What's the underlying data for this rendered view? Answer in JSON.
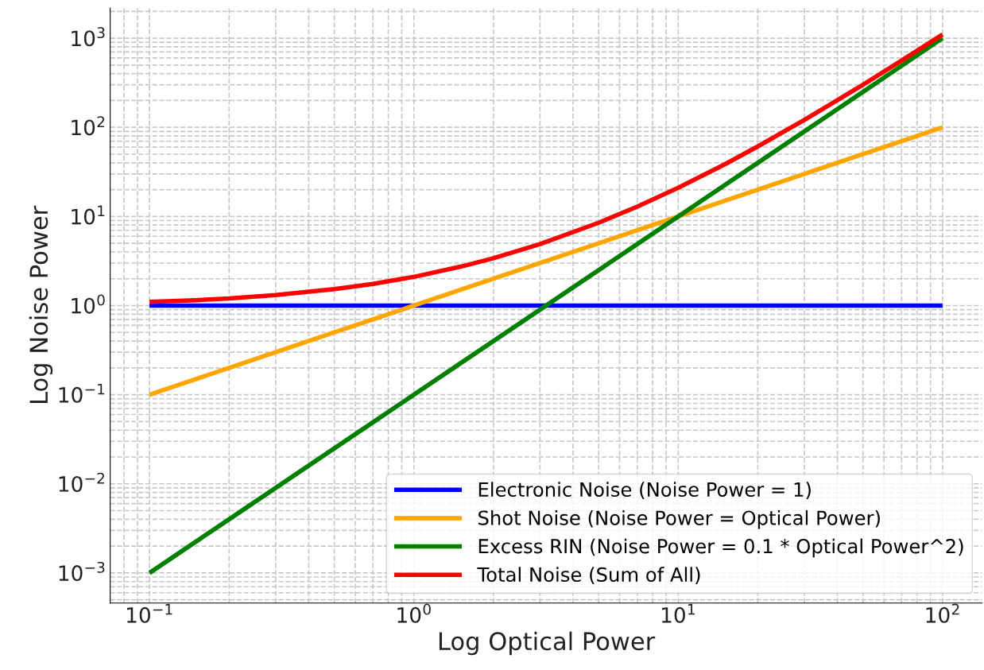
{
  "chart_data": {
    "type": "line",
    "xlabel": "Log Optical Power",
    "ylabel": "Log Noise Power",
    "log": "xy",
    "grid": true,
    "legend": "bottom right",
    "line_style": "solid",
    "marker": "none",
    "x": [
      0.1,
      0.15,
      0.2,
      0.3,
      0.5,
      0.7,
      1,
      1.5,
      2,
      3,
      5,
      7,
      10,
      15,
      20,
      30,
      50,
      70,
      100
    ],
    "xlim": [
      0.071,
      141
    ],
    "ylim": [
      0.00046,
      2180
    ],
    "xticks": [
      {
        "value": 0.1,
        "label": "10$^{−1}$"
      },
      {
        "value": 1,
        "label": "10$^{0}$"
      },
      {
        "value": 10,
        "label": "10$^{1}$"
      },
      {
        "value": 100,
        "label": "10$^{2}$"
      }
    ],
    "yticks": [
      {
        "value": 0.001,
        "label": "10$^{−3}$"
      },
      {
        "value": 0.01,
        "label": "10$^{−2}$"
      },
      {
        "value": 0.1,
        "label": "10$^{−1}$"
      },
      {
        "value": 1,
        "label": "10$^{0}$"
      },
      {
        "value": 10,
        "label": "10$^{1}$"
      },
      {
        "value": 100,
        "label": "10$^{2}$"
      },
      {
        "value": 1000,
        "label": "10$^{3}$"
      }
    ],
    "series": [
      {
        "name": "Electronic Noise (Noise Power = 1)",
        "color": "#0000ff",
        "values": [
          1,
          1,
          1,
          1,
          1,
          1,
          1,
          1,
          1,
          1,
          1,
          1,
          1,
          1,
          1,
          1,
          1,
          1,
          1
        ]
      },
      {
        "name": "Shot Noise (Noise Power = Optical Power)",
        "color": "#ffa500",
        "values": [
          0.1,
          0.15,
          0.2,
          0.3,
          0.5,
          0.7,
          1,
          1.5,
          2,
          3,
          5,
          7,
          10,
          15,
          20,
          30,
          50,
          70,
          100
        ]
      },
      {
        "name": "Excess RIN (Noise Power = 0.1 * Optical Power^2)",
        "color": "#008000",
        "values": [
          0.001,
          0.00225,
          0.004,
          0.009,
          0.025,
          0.049,
          0.1,
          0.225,
          0.4,
          0.9,
          2.5,
          4.9,
          10,
          22.5,
          40,
          90,
          250,
          490,
          1000
        ]
      },
      {
        "name": "Total Noise (Sum of All)",
        "color": "#ff0000",
        "values": [
          1.1,
          1.15,
          1.2,
          1.31,
          1.53,
          1.75,
          2.1,
          2.73,
          3.4,
          4.9,
          8.5,
          12.9,
          21,
          38.5,
          61,
          121,
          301,
          561,
          1101
        ]
      }
    ]
  }
}
